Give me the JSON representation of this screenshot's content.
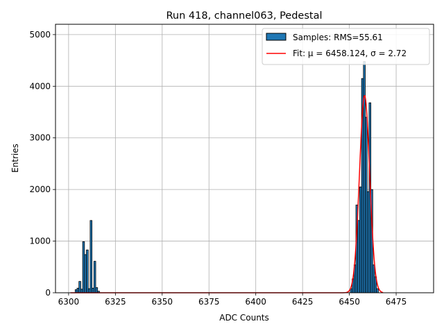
{
  "chart_data": {
    "type": "bar",
    "title": "Run 418, channel063, Pedestal",
    "xlabel": "ADC Counts",
    "ylabel": "Entries",
    "xlim": [
      6293,
      6495
    ],
    "ylim": [
      0,
      5200
    ],
    "x_ticks": [
      6300,
      6325,
      6350,
      6375,
      6400,
      6425,
      6450,
      6475
    ],
    "y_ticks": [
      0,
      1000,
      2000,
      3000,
      4000,
      5000
    ],
    "grid": true,
    "legend_position": "top-right",
    "bin_width": 1,
    "series": [
      {
        "name": "Samples: RMS=55.61",
        "kind": "histogram",
        "color": "#1f77b4",
        "edge_color": "#000000",
        "bins": [
          {
            "x": 6304,
            "value": 60
          },
          {
            "x": 6305,
            "value": 90
          },
          {
            "x": 6306,
            "value": 220
          },
          {
            "x": 6307,
            "value": 70
          },
          {
            "x": 6308,
            "value": 990
          },
          {
            "x": 6309,
            "value": 740
          },
          {
            "x": 6310,
            "value": 830
          },
          {
            "x": 6311,
            "value": 80
          },
          {
            "x": 6312,
            "value": 1400
          },
          {
            "x": 6313,
            "value": 90
          },
          {
            "x": 6314,
            "value": 610
          },
          {
            "x": 6315,
            "value": 100
          },
          {
            "x": 6316,
            "value": 30
          },
          {
            "x": 6451,
            "value": 80
          },
          {
            "x": 6452,
            "value": 270
          },
          {
            "x": 6453,
            "value": 540
          },
          {
            "x": 6454,
            "value": 1700
          },
          {
            "x": 6455,
            "value": 1400
          },
          {
            "x": 6456,
            "value": 2050
          },
          {
            "x": 6457,
            "value": 4150
          },
          {
            "x": 6458,
            "value": 4480
          },
          {
            "x": 6459,
            "value": 3400
          },
          {
            "x": 6460,
            "value": 1960
          },
          {
            "x": 6461,
            "value": 3680
          },
          {
            "x": 6462,
            "value": 2000
          },
          {
            "x": 6463,
            "value": 540
          },
          {
            "x": 6464,
            "value": 310
          },
          {
            "x": 6465,
            "value": 80
          }
        ]
      },
      {
        "name": "Fit: μ = 6458.124, σ = 2.72",
        "kind": "gaussian_fit",
        "color": "#ff0000",
        "mu": 6458.124,
        "sigma": 2.72,
        "amplitude": 3820,
        "x_range": [
          6301,
          6468
        ]
      }
    ]
  }
}
